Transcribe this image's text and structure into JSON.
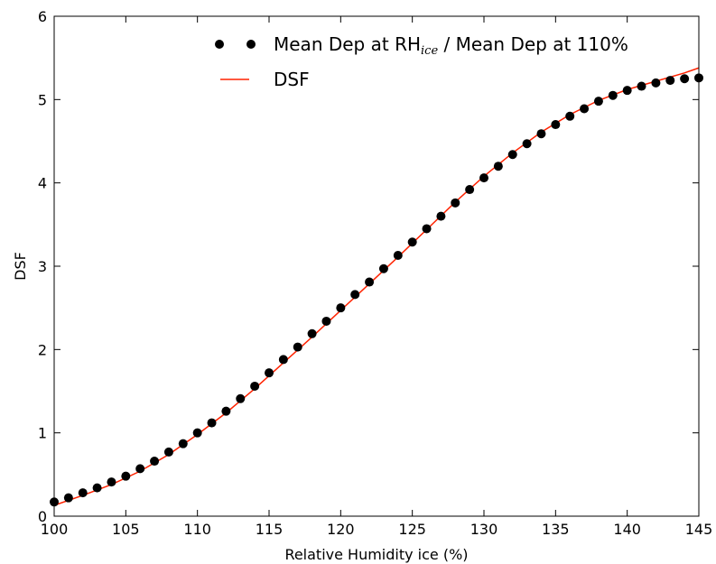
{
  "chart_data": {
    "type": "scatter",
    "xlabel": "Relative Humidity ice (%)",
    "ylabel": "DSF",
    "xlim": [
      100,
      145
    ],
    "ylim": [
      0,
      6
    ],
    "x_ticks": [
      "100",
      "105",
      "110",
      "115",
      "120",
      "125",
      "130",
      "135",
      "140",
      "145"
    ],
    "y_ticks": [
      "0",
      "1",
      "2",
      "3",
      "4",
      "5",
      "6"
    ],
    "grid": false,
    "legend_position": "top-right",
    "legend": {
      "dots_prefix": "Mean Dep at RH",
      "dots_subscript": "ice",
      "dots_suffix": " / Mean Dep at 110%",
      "line": "DSF"
    },
    "series": [
      {
        "kind": "markers",
        "color": "#000000",
        "x": [
          100,
          101,
          102,
          103,
          104,
          105,
          106,
          107,
          108,
          109,
          110,
          111,
          112,
          113,
          114,
          115,
          116,
          117,
          118,
          119,
          120,
          121,
          122,
          123,
          124,
          125,
          126,
          127,
          128,
          129,
          130,
          131,
          132,
          133,
          134,
          135,
          136,
          137,
          138,
          139,
          140,
          141,
          142,
          143,
          144,
          145
        ],
        "y": [
          0.17,
          0.22,
          0.28,
          0.34,
          0.41,
          0.48,
          0.57,
          0.66,
          0.77,
          0.87,
          1.0,
          1.12,
          1.26,
          1.41,
          1.56,
          1.72,
          1.88,
          2.03,
          2.19,
          2.34,
          2.5,
          2.66,
          2.81,
          2.97,
          3.13,
          3.29,
          3.45,
          3.6,
          3.76,
          3.92,
          4.06,
          4.2,
          4.34,
          4.47,
          4.59,
          4.7,
          4.8,
          4.89,
          4.98,
          5.05,
          5.11,
          5.16,
          5.2,
          5.23,
          5.25,
          5.26
        ]
      },
      {
        "kind": "line",
        "color": "#ff2200",
        "x": [
          100,
          102,
          104,
          106,
          108,
          110,
          112,
          114,
          116,
          118,
          120,
          122,
          124,
          126,
          128,
          130,
          132,
          134,
          136,
          138,
          140,
          142,
          144,
          145
        ],
        "y": [
          0.13,
          0.25,
          0.38,
          0.54,
          0.74,
          0.98,
          1.24,
          1.53,
          1.84,
          2.15,
          2.47,
          2.79,
          3.11,
          3.44,
          3.77,
          4.08,
          4.36,
          4.61,
          4.82,
          4.99,
          5.12,
          5.22,
          5.32,
          5.38
        ]
      }
    ]
  }
}
